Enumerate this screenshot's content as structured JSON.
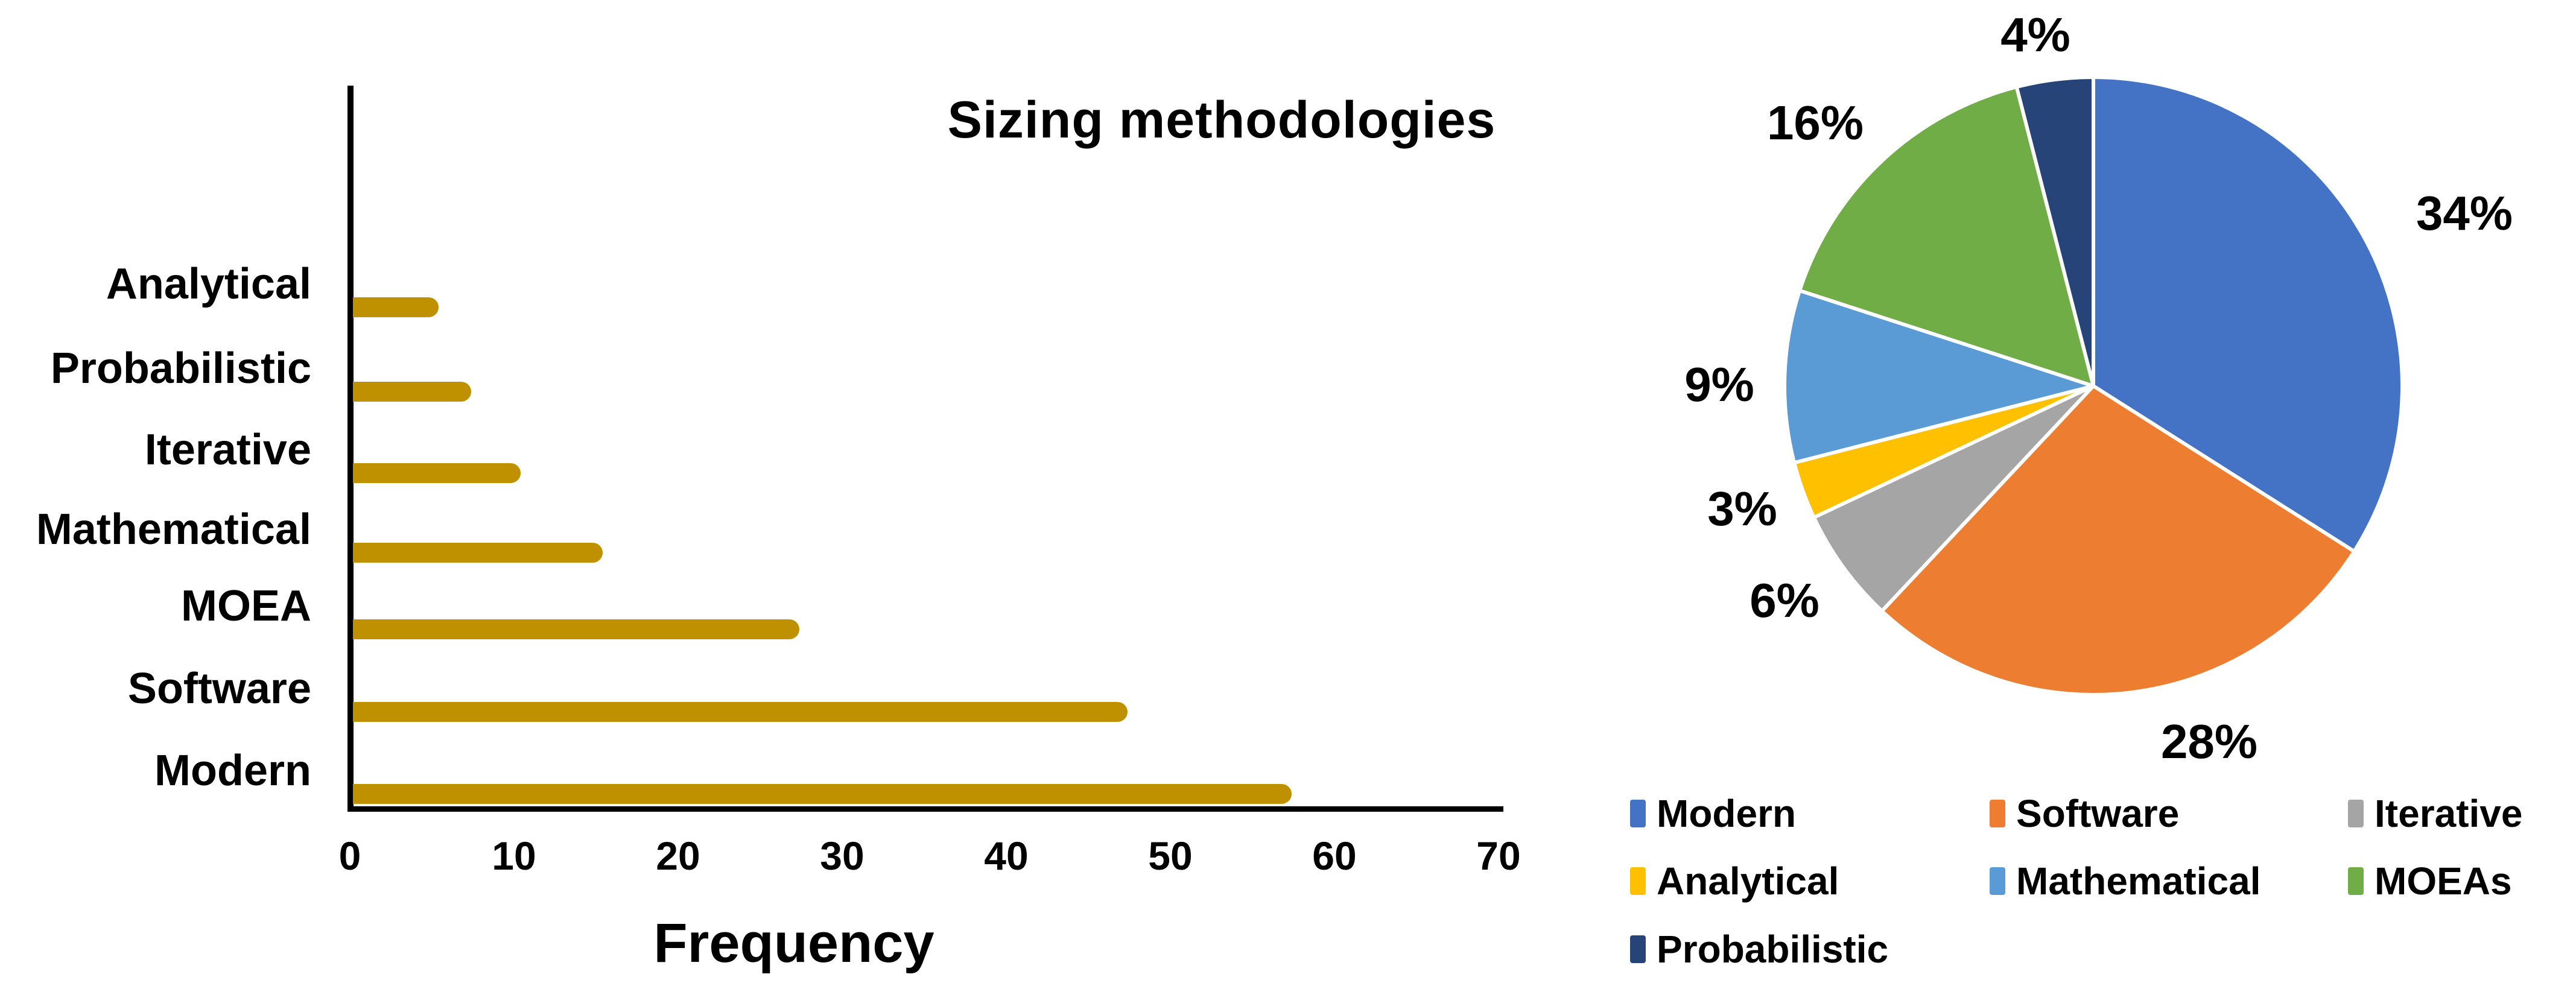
{
  "chart_data": [
    {
      "type": "bar",
      "orientation": "horizontal",
      "title": "Sizing methodologies",
      "categories": [
        "Analytical",
        "Probabilistic",
        "Iterative",
        "Mathematical",
        "MOEA",
        "Software",
        "Modern"
      ],
      "values": [
        5,
        7,
        10,
        15,
        27,
        47,
        57
      ],
      "xlabel": "Frequency",
      "xlim": [
        0,
        70
      ],
      "x_ticks": [
        0,
        10,
        20,
        30,
        40,
        50,
        60,
        70
      ],
      "bar_color": "#BF9000",
      "grid": false,
      "category_order_note": "listed top to bottom"
    },
    {
      "type": "pie",
      "start_angle_deg": 0,
      "direction": "clockwise",
      "slices": [
        {
          "label": "Modern",
          "pct": 34,
          "pct_text": "34%",
          "color": "#4472C4"
        },
        {
          "label": "Software",
          "pct": 28,
          "pct_text": "28%",
          "color": "#ED7D31"
        },
        {
          "label": "Iterative",
          "pct": 6,
          "pct_text": "6%",
          "color": "#A5A5A5"
        },
        {
          "label": "Analytical",
          "pct": 3,
          "pct_text": "3%",
          "color": "#FFC000"
        },
        {
          "label": "Mathematical",
          "pct": 9,
          "pct_text": "9%",
          "color": "#5B9BD5"
        },
        {
          "label": "MOEAs",
          "pct": 16,
          "pct_text": "16%",
          "color": "#70AD47"
        },
        {
          "label": "Probabilistic",
          "pct": 4,
          "pct_text": "4%",
          "color": "#264478"
        }
      ],
      "legend_position": "bottom",
      "legend": [
        {
          "label": "Modern",
          "color": "#4472C4"
        },
        {
          "label": "Software",
          "color": "#ED7D31"
        },
        {
          "label": "Iterative",
          "color": "#A5A5A5"
        },
        {
          "label": "Analytical",
          "color": "#FFC000"
        },
        {
          "label": "Mathematical",
          "color": "#5B9BD5"
        },
        {
          "label": "MOEAs",
          "color": "#70AD47"
        },
        {
          "label": "Probabilistic",
          "color": "#264478"
        }
      ]
    }
  ]
}
